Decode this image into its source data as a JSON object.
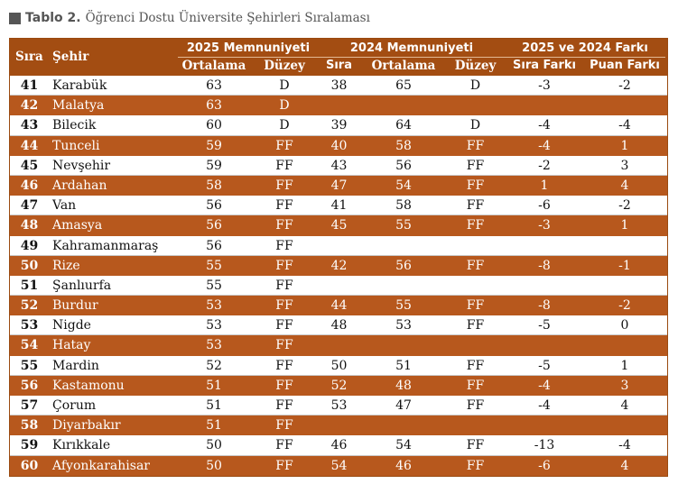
{
  "caption": {
    "label": "Tablo 2.",
    "text": "Öğrenci Dostu Üniversite Şehirleri Sıralaması"
  },
  "header": {
    "rank": "Sıra",
    "city": "Şehir",
    "group_2025": "2025 Memnuniyeti",
    "group_2024": "2024 Memnuniyeti",
    "group_diff": "2025 ve 2024 Farkı",
    "avg_2025": "Ortalama",
    "level_2025": "Düzey",
    "rank_2024": "Sıra",
    "avg_2024": "Ortalama",
    "level_2024": "Düzey",
    "rank_diff": "Sıra Farkı",
    "score_diff": "Puan Farkı"
  },
  "rows": [
    {
      "rank": "41",
      "city": "Karabük",
      "avg25": "63",
      "lvl25": "D",
      "rank24": "38",
      "avg24": "65",
      "lvl24": "D",
      "rdiff": "-3",
      "pdiff": "-2"
    },
    {
      "rank": "42",
      "city": "Malatya",
      "avg25": "63",
      "lvl25": "D",
      "rank24": "",
      "avg24": "",
      "lvl24": "",
      "rdiff": "",
      "pdiff": ""
    },
    {
      "rank": "43",
      "city": "Bilecik",
      "avg25": "60",
      "lvl25": "D",
      "rank24": "39",
      "avg24": "64",
      "lvl24": "D",
      "rdiff": "-4",
      "pdiff": "-4"
    },
    {
      "rank": "44",
      "city": "Tunceli",
      "avg25": "59",
      "lvl25": "FF",
      "rank24": "40",
      "avg24": "58",
      "lvl24": "FF",
      "rdiff": "-4",
      "pdiff": "1"
    },
    {
      "rank": "45",
      "city": "Nevşehir",
      "avg25": "59",
      "lvl25": "FF",
      "rank24": "43",
      "avg24": "56",
      "lvl24": "FF",
      "rdiff": "-2",
      "pdiff": "3"
    },
    {
      "rank": "46",
      "city": "Ardahan",
      "avg25": "58",
      "lvl25": "FF",
      "rank24": "47",
      "avg24": "54",
      "lvl24": "FF",
      "rdiff": "1",
      "pdiff": "4"
    },
    {
      "rank": "47",
      "city": "Van",
      "avg25": "56",
      "lvl25": "FF",
      "rank24": "41",
      "avg24": "58",
      "lvl24": "FF",
      "rdiff": "-6",
      "pdiff": "-2"
    },
    {
      "rank": "48",
      "city": "Amasya",
      "avg25": "56",
      "lvl25": "FF",
      "rank24": "45",
      "avg24": "55",
      "lvl24": "FF",
      "rdiff": "-3",
      "pdiff": "1"
    },
    {
      "rank": "49",
      "city": "Kahramanmaraş",
      "avg25": "56",
      "lvl25": "FF",
      "rank24": "",
      "avg24": "",
      "lvl24": "",
      "rdiff": "",
      "pdiff": ""
    },
    {
      "rank": "50",
      "city": "Rize",
      "avg25": "55",
      "lvl25": "FF",
      "rank24": "42",
      "avg24": "56",
      "lvl24": "FF",
      "rdiff": "-8",
      "pdiff": "-1"
    },
    {
      "rank": "51",
      "city": "Şanlıurfa",
      "avg25": "55",
      "lvl25": "FF",
      "rank24": "",
      "avg24": "",
      "lvl24": "",
      "rdiff": "",
      "pdiff": ""
    },
    {
      "rank": "52",
      "city": "Burdur",
      "avg25": "53",
      "lvl25": "FF",
      "rank24": "44",
      "avg24": "55",
      "lvl24": "FF",
      "rdiff": "-8",
      "pdiff": "-2"
    },
    {
      "rank": "53",
      "city": "Nigde",
      "avg25": "53",
      "lvl25": "FF",
      "rank24": "48",
      "avg24": "53",
      "lvl24": "FF",
      "rdiff": "-5",
      "pdiff": "0"
    },
    {
      "rank": "54",
      "city": "Hatay",
      "avg25": "53",
      "lvl25": "FF",
      "rank24": "",
      "avg24": "",
      "lvl24": "",
      "rdiff": "",
      "pdiff": ""
    },
    {
      "rank": "55",
      "city": "Mardin",
      "avg25": "52",
      "lvl25": "FF",
      "rank24": "50",
      "avg24": "51",
      "lvl24": "FF",
      "rdiff": "-5",
      "pdiff": "1"
    },
    {
      "rank": "56",
      "city": "Kastamonu",
      "avg25": "51",
      "lvl25": "FF",
      "rank24": "52",
      "avg24": "48",
      "lvl24": "FF",
      "rdiff": "-4",
      "pdiff": "3"
    },
    {
      "rank": "57",
      "city": "Çorum",
      "avg25": "51",
      "lvl25": "FF",
      "rank24": "53",
      "avg24": "47",
      "lvl24": "FF",
      "rdiff": "-4",
      "pdiff": "4"
    },
    {
      "rank": "58",
      "city": "Diyarbakır",
      "avg25": "51",
      "lvl25": "FF",
      "rank24": "",
      "avg24": "",
      "lvl24": "",
      "rdiff": "",
      "pdiff": ""
    },
    {
      "rank": "59",
      "city": "Kırıkkale",
      "avg25": "50",
      "lvl25": "FF",
      "rank24": "46",
      "avg24": "54",
      "lvl24": "FF",
      "rdiff": "-13",
      "pdiff": "-4"
    },
    {
      "rank": "60",
      "city": "Afyonkarahisar",
      "avg25": "50",
      "lvl25": "FF",
      "rank24": "54",
      "avg24": "46",
      "lvl24": "FF",
      "rdiff": "-6",
      "pdiff": "4"
    }
  ]
}
